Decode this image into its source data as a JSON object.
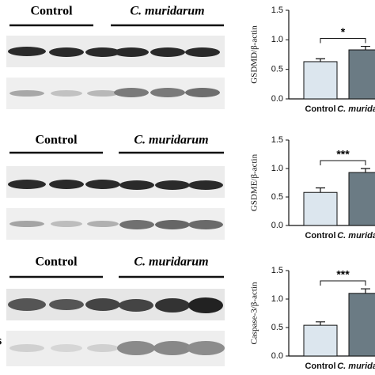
{
  "chart_data": [
    {
      "type": "bar",
      "ylabel": "GSDMD/β-actin",
      "categories": [
        "Control",
        "C. muridarum"
      ],
      "values": [
        0.63,
        0.83
      ],
      "errors": [
        0.05,
        0.06
      ],
      "colors": [
        "#dce6ee",
        "#6b7b84"
      ],
      "ylim": [
        0,
        1.5
      ],
      "yticks": [
        {
          "value": 0,
          "label": "0.0"
        },
        0.5,
        {
          "value": 1,
          "label": "1.0"
        },
        1.5
      ],
      "annotation": "*"
    },
    {
      "type": "bar",
      "ylabel": "GSDME/β-actin",
      "categories": [
        "Control",
        "C. muridarum"
      ],
      "values": [
        0.58,
        0.93
      ],
      "errors": [
        0.08,
        0.07
      ],
      "colors": [
        "#dce6ee",
        "#6b7b84"
      ],
      "ylim": [
        0,
        1.5
      ],
      "yticks": [
        {
          "value": 0,
          "label": "0.0"
        },
        0.5,
        {
          "value": 1,
          "label": "1.0"
        },
        1.5
      ],
      "annotation": "***"
    },
    {
      "type": "bar",
      "ylabel": "Caspase-3/β-actin",
      "categories": [
        "Control",
        "C. muridarum"
      ],
      "values": [
        0.54,
        1.1
      ],
      "errors": [
        0.06,
        0.08
      ],
      "colors": [
        "#dce6ee",
        "#6b7b84"
      ],
      "ylim": [
        0,
        1.5
      ],
      "yticks": [
        {
          "value": 0,
          "label": "0.0"
        },
        0.5,
        {
          "value": 1,
          "label": "1.0"
        },
        1.5
      ],
      "annotation": "***"
    }
  ],
  "blots": [
    {
      "groups": [
        "Control",
        "C. muridarum"
      ]
    },
    {
      "groups": [
        "Control",
        "C. muridarum"
      ]
    },
    {
      "groups": [
        "Control",
        "C. muridarum"
      ],
      "side_label": "s"
    }
  ]
}
